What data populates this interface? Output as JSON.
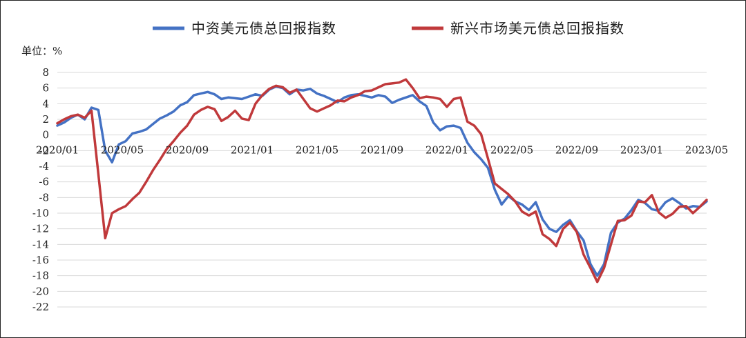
{
  "chart_data": {
    "type": "line",
    "unit_label": "单位：%",
    "x_tick_labels": [
      "2020/01",
      "2020/05",
      "2020/09",
      "2021/01",
      "2021/05",
      "2021/09",
      "2022/01",
      "2022/05",
      "2022/09",
      "2023/01",
      "2023/05"
    ],
    "y_ticks": [
      8,
      6,
      4,
      2,
      0,
      -2,
      -4,
      -6,
      -8,
      -10,
      -12,
      -14,
      -16,
      -18,
      -20,
      -22
    ],
    "ylim": [
      -22,
      8
    ],
    "grid": true,
    "legend": "top",
    "colors": {
      "series1": "#4472c4",
      "series2": "#c0393b",
      "grid": "#d9d9d9",
      "axis": "#bfbfbf"
    },
    "series": [
      {
        "name": "中资美元债总回报指数",
        "values": [
          1.2,
          1.6,
          2.2,
          2.6,
          2.0,
          3.5,
          3.2,
          -2.0,
          -3.5,
          -1.2,
          -0.8,
          0.2,
          0.4,
          0.7,
          1.4,
          2.1,
          2.5,
          3.0,
          3.8,
          4.2,
          5.1,
          5.3,
          5.5,
          5.2,
          4.6,
          4.8,
          4.7,
          4.6,
          4.9,
          5.2,
          5.0,
          5.8,
          6.2,
          6.0,
          5.2,
          5.8,
          5.7,
          5.9,
          5.3,
          5.0,
          4.6,
          4.2,
          4.8,
          5.1,
          5.2,
          5.0,
          4.8,
          5.1,
          4.9,
          4.1,
          4.5,
          4.8,
          5.1,
          4.3,
          3.7,
          1.6,
          0.6,
          1.1,
          1.2,
          0.9,
          -1.0,
          -2.2,
          -3.1,
          -4.2,
          -7.0,
          -8.9,
          -7.8,
          -8.5,
          -8.9,
          -9.6,
          -8.6,
          -10.8,
          -12.0,
          -12.4,
          -11.5,
          -10.9,
          -12.3,
          -13.5,
          -16.5,
          -18.0,
          -16.5,
          -12.5,
          -11.2,
          -10.7,
          -9.6,
          -8.3,
          -8.7,
          -9.5,
          -9.7,
          -8.6,
          -8.1,
          -8.7,
          -9.4,
          -9.1,
          -9.2,
          -8.5
        ]
      },
      {
        "name": "新兴市场美元债总回报指数",
        "values": [
          1.5,
          2.0,
          2.4,
          2.6,
          2.2,
          3.1,
          -5.0,
          -13.2,
          -10.0,
          -9.5,
          -9.1,
          -8.2,
          -7.4,
          -6.0,
          -4.5,
          -3.2,
          -1.8,
          -0.8,
          0.3,
          1.2,
          2.6,
          3.2,
          3.6,
          3.3,
          1.8,
          2.3,
          3.1,
          2.1,
          1.9,
          4.0,
          5.1,
          5.9,
          6.3,
          6.1,
          5.4,
          5.8,
          4.6,
          3.4,
          3.0,
          3.4,
          3.8,
          4.4,
          4.3,
          4.8,
          5.1,
          5.6,
          5.7,
          6.1,
          6.5,
          6.6,
          6.7,
          7.1,
          6.0,
          4.7,
          4.9,
          4.8,
          4.6,
          3.6,
          4.6,
          4.8,
          1.7,
          1.2,
          0.1,
          -3.0,
          -6.2,
          -6.9,
          -7.6,
          -8.5,
          -9.8,
          -10.3,
          -9.8,
          -12.7,
          -13.3,
          -14.2,
          -12.0,
          -11.2,
          -12.4,
          -15.3,
          -17.0,
          -18.8,
          -17.0,
          -14.0,
          -11.0,
          -10.9,
          -10.3,
          -8.5,
          -8.6,
          -7.7,
          -9.9,
          -10.6,
          -10.1,
          -9.2,
          -9.1,
          -10.0,
          -9.2,
          -8.3
        ]
      }
    ]
  }
}
